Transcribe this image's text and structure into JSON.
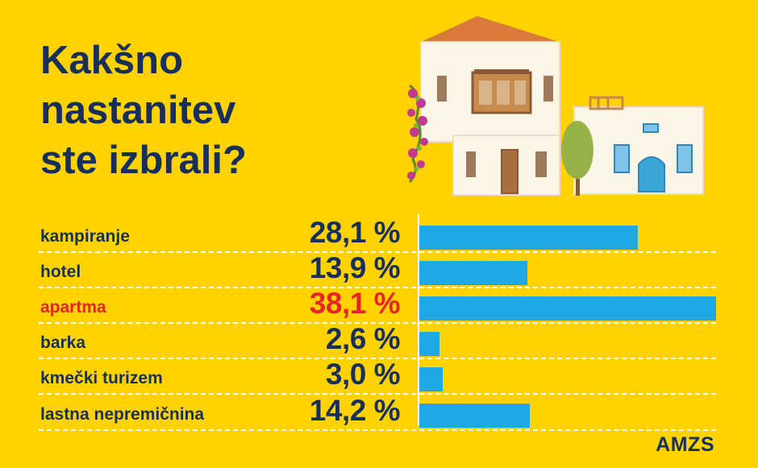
{
  "title": [
    "Kakšno",
    "nastanitev",
    "ste izbrali?"
  ],
  "brand": "AMZS",
  "colors": {
    "background": "#ffd200",
    "text": "#16305a",
    "highlight": "#e52521",
    "bar": "#1ea8e6",
    "separator": "#ffffff"
  },
  "illustration": {
    "icon": "mediterranean-houses-icon"
  },
  "chart_data": {
    "type": "bar",
    "orientation": "horizontal",
    "categories": [
      "kampiranje",
      "hotel",
      "apartma",
      "barka",
      "kmečki turizem",
      "lastna nepremičnina"
    ],
    "values": [
      28.1,
      13.9,
      38.1,
      2.6,
      3.0,
      14.2
    ],
    "value_labels": [
      "28,1 %",
      "13,9 %",
      "38,1 %",
      "2,6 %",
      "3,0 %",
      "14,2 %"
    ],
    "highlighted_category": "apartma",
    "unit": "%",
    "xlim": [
      0,
      38.1
    ],
    "grid": false,
    "separators": "dashed"
  }
}
